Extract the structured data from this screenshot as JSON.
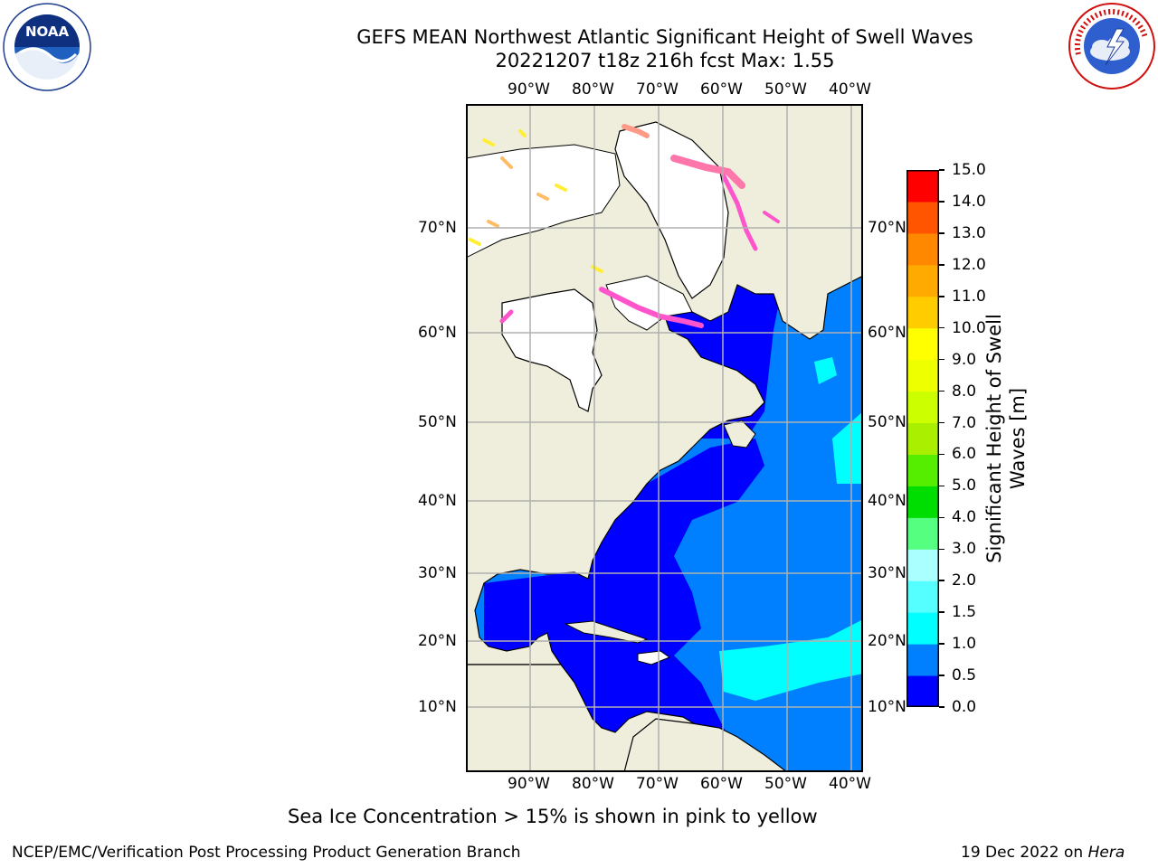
{
  "header": {
    "title_line1": "GEFS MEAN Northwest Atlantic Significant Height of Swell Waves",
    "title_line2": "20221207 t18z 216h fcst   Max: 1.55"
  },
  "logos": {
    "left": {
      "name": "noaa-logo",
      "text": "NOAA",
      "ring_text": "NATIONAL OCEANIC AND ATMOSPHERIC ADMINISTRATION · U.S. DEPARTMENT OF COMMERCE"
    },
    "right": {
      "name": "nws-logo",
      "ring_text": "NATIONAL WEATHER SERVICE"
    }
  },
  "map": {
    "lon_labels": [
      "90°W",
      "80°W",
      "70°W",
      "60°W",
      "50°W",
      "40°W"
    ],
    "lat_labels": [
      "70°N",
      "60°N",
      "50°N",
      "40°N",
      "30°N",
      "20°N",
      "10°N"
    ],
    "colors": {
      "land": "#efeedc",
      "ice_land": "#ffffff",
      "grid": "#b0b0b0",
      "coast": "#000000",
      "sea_ice": [
        "#ff55cc",
        "#ff77aa",
        "#ff9988",
        "#ffbb66",
        "#ffee33"
      ]
    }
  },
  "colorbar": {
    "label": "Significant Height of Swell Waves [m]",
    "label_line1": "Significant Height of Swell",
    "label_line2": "Waves [m]",
    "ticks": [
      "0.0",
      "0.5",
      "1.0",
      "1.5",
      "2.0",
      "3.0",
      "4.0",
      "5.0",
      "6.0",
      "7.0",
      "8.0",
      "9.0",
      "10.0",
      "11.0",
      "12.0",
      "13.0",
      "14.0",
      "15.0"
    ],
    "bins": [
      {
        "range": "0.0-0.5",
        "color": "#0000ff"
      },
      {
        "range": "0.5-1.0",
        "color": "#0080ff"
      },
      {
        "range": "1.0-1.5",
        "color": "#00ffff"
      },
      {
        "range": "1.5-2.0",
        "color": "#55ffff"
      },
      {
        "range": "2.0-3.0",
        "color": "#aaffff"
      },
      {
        "range": "3.0-4.0",
        "color": "#55ff80"
      },
      {
        "range": "4.0-5.0",
        "color": "#00dd00"
      },
      {
        "range": "5.0-6.0",
        "color": "#55ee00"
      },
      {
        "range": "6.0-7.0",
        "color": "#aaee00"
      },
      {
        "range": "7.0-8.0",
        "color": "#ccff00"
      },
      {
        "range": "8.0-9.0",
        "color": "#eeff00"
      },
      {
        "range": "9.0-10.0",
        "color": "#ffff00"
      },
      {
        "range": "10.0-11.0",
        "color": "#ffcc00"
      },
      {
        "range": "11.0-12.0",
        "color": "#ffaa00"
      },
      {
        "range": "12.0-13.0",
        "color": "#ff8800"
      },
      {
        "range": "13.0-14.0",
        "color": "#ff5500"
      },
      {
        "range": "14.0-15.0",
        "color": "#ff0000"
      }
    ]
  },
  "caption": "Sea Ice Concentration > 15% is shown in pink to yellow",
  "footer": {
    "left": "NCEP/EMC/Verification Post Processing Product Generation Branch",
    "right_prefix": "19 Dec 2022 on ",
    "right_machine": "Hera"
  }
}
